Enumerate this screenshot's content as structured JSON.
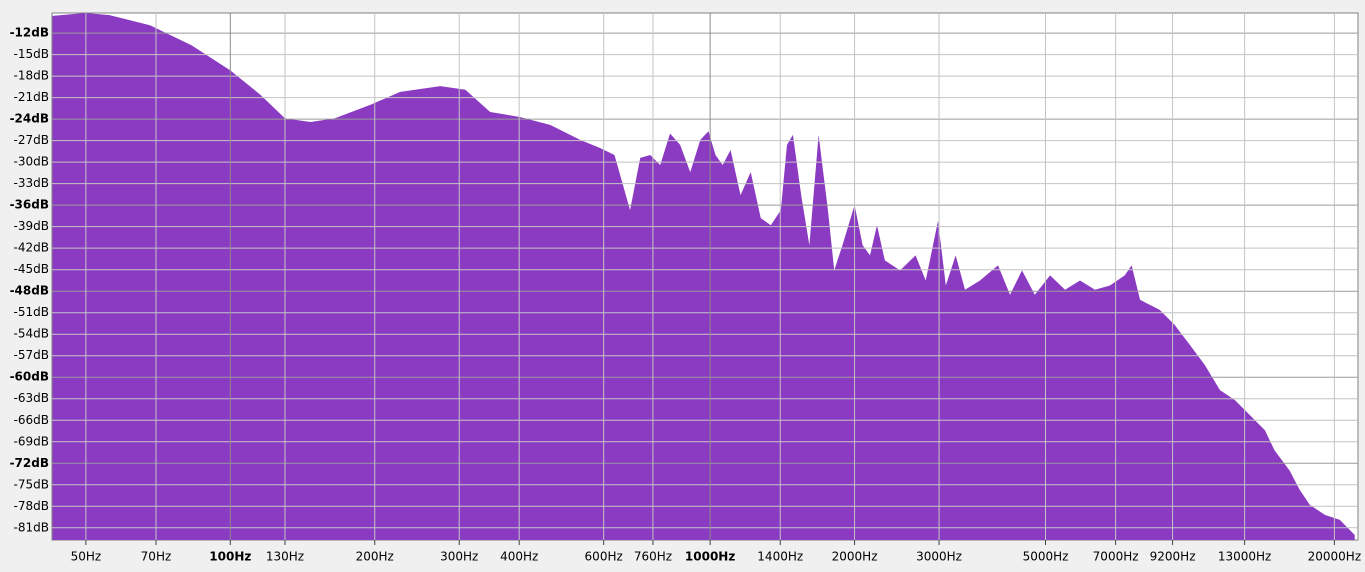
{
  "chart_data": {
    "type": "area",
    "x": [
      42.6,
      49.9,
      56,
      68,
      83,
      100,
      115.5,
      130,
      147,
      165,
      196,
      226,
      274,
      309,
      348,
      401,
      464,
      536,
      588,
      632,
      681,
      715,
      750,
      787,
      825,
      866,
      909,
      954,
      992,
      1026,
      1062,
      1103,
      1157,
      1215,
      1275,
      1338,
      1404,
      1446,
      1488,
      1548,
      1610,
      1683,
      1760,
      1814,
      1887,
      2000,
      2079,
      2154,
      2227,
      2313,
      2488,
      2680,
      2814,
      2985,
      3099,
      3249,
      3398,
      3651,
      3981,
      4217,
      4467,
      4750,
      5111,
      5492,
      5900,
      6340,
      6810,
      7313,
      7560,
      7870,
      8650,
      9290,
      10000,
      10740,
      11550,
      12410,
      13340,
      14330,
      15010,
      16130,
      16930,
      17780,
      19110,
      20530,
      21540,
      22050
    ],
    "values": [
      -9.6,
      -9.2,
      -9.5,
      -10.9,
      -13.7,
      -17.2,
      -20.6,
      -23.9,
      -24.4,
      -23.9,
      -22.0,
      -20.2,
      -19.4,
      -19.9,
      -23.0,
      -23.7,
      -24.8,
      -26.9,
      -28.0,
      -29.0,
      -36.7,
      -29.4,
      -29.0,
      -30.4,
      -26.0,
      -27.6,
      -31.4,
      -26.9,
      -25.7,
      -29.0,
      -30.4,
      -28.3,
      -34.6,
      -31.4,
      -37.8,
      -38.8,
      -36.7,
      -27.6,
      -26.2,
      -34.6,
      -41.6,
      -26.2,
      -36.7,
      -45.1,
      -41.6,
      -36.0,
      -41.6,
      -43.0,
      -38.8,
      -43.7,
      -45.1,
      -43.0,
      -46.5,
      -38.2,
      -47.2,
      -43.0,
      -47.8,
      -46.5,
      -44.4,
      -48.5,
      -45.1,
      -48.5,
      -45.8,
      -47.8,
      -46.5,
      -47.8,
      -47.2,
      -45.8,
      -44.4,
      -49.2,
      -50.6,
      -52.7,
      -55.5,
      -58.3,
      -61.8,
      -63.2,
      -65.3,
      -67.4,
      -70.2,
      -73.0,
      -75.7,
      -77.8,
      -79.2,
      -79.9,
      -81.3,
      -82.0
    ],
    "color": "#8a3bc2",
    "xscale": "log",
    "xlim": [
      42.5,
      22400
    ],
    "ylim": [
      -82.7,
      -9.2
    ],
    "grid": true,
    "xticks": [
      {
        "value": 50,
        "label": "50Hz"
      },
      {
        "value": 70,
        "label": "70Hz"
      },
      {
        "value": 100,
        "label": "100Hz"
      },
      {
        "value": 130,
        "label": "130Hz"
      },
      {
        "value": 200,
        "label": "200Hz"
      },
      {
        "value": 300,
        "label": "300Hz"
      },
      {
        "value": 400,
        "label": "400Hz"
      },
      {
        "value": 600,
        "label": "600Hz"
      },
      {
        "value": 760,
        "label": "760Hz"
      },
      {
        "value": 1000,
        "label": "1000Hz"
      },
      {
        "value": 1400,
        "label": "1400Hz"
      },
      {
        "value": 2000,
        "label": "2000Hz"
      },
      {
        "value": 3000,
        "label": "3000Hz"
      },
      {
        "value": 5000,
        "label": "5000Hz"
      },
      {
        "value": 7000,
        "label": "7000Hz"
      },
      {
        "value": 9200,
        "label": "9200Hz"
      },
      {
        "value": 13000,
        "label": "13000Hz"
      },
      {
        "value": 20000,
        "label": "20000Hz"
      }
    ],
    "yticks": [
      {
        "value": -12,
        "label": "-12dB"
      },
      {
        "value": -15,
        "label": "-15dB"
      },
      {
        "value": -18,
        "label": "-18dB"
      },
      {
        "value": -21,
        "label": "-21dB"
      },
      {
        "value": -24,
        "label": "-24dB"
      },
      {
        "value": -27,
        "label": "-27dB"
      },
      {
        "value": -30,
        "label": "-30dB"
      },
      {
        "value": -33,
        "label": "-33dB"
      },
      {
        "value": -36,
        "label": "-36dB"
      },
      {
        "value": -39,
        "label": "-39dB"
      },
      {
        "value": -42,
        "label": "-42dB"
      },
      {
        "value": -45,
        "label": "-45dB"
      },
      {
        "value": -48,
        "label": "-48dB"
      },
      {
        "value": -51,
        "label": "-51dB"
      },
      {
        "value": -54,
        "label": "-54dB"
      },
      {
        "value": -57,
        "label": "-57dB"
      },
      {
        "value": -60,
        "label": "-60dB"
      },
      {
        "value": -63,
        "label": "-63dB"
      },
      {
        "value": -66,
        "label": "-66dB"
      },
      {
        "value": -69,
        "label": "-69dB"
      },
      {
        "value": -72,
        "label": "-72dB"
      },
      {
        "value": -75,
        "label": "-75dB"
      },
      {
        "value": -78,
        "label": "-78dB"
      },
      {
        "value": -81,
        "label": "-81dB"
      }
    ]
  }
}
